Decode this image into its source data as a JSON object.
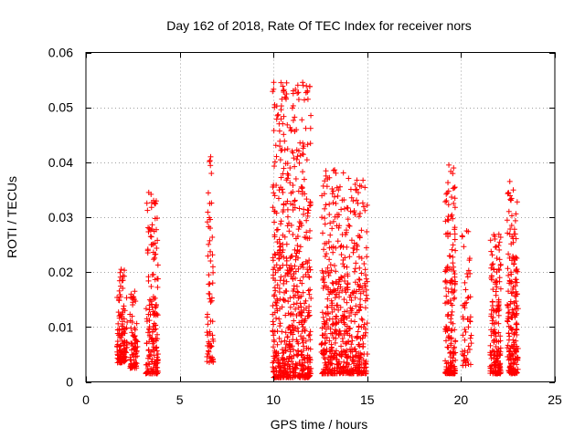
{
  "chart_data": {
    "type": "scatter",
    "title": "Day 162 of 2018, Rate Of TEC Index for receiver nors",
    "xlabel": "GPS time / hours",
    "ylabel": "ROTI / TECUs",
    "xlim": [
      0,
      25
    ],
    "ylim": [
      0,
      0.06
    ],
    "x_ticks": [
      0,
      5,
      10,
      15,
      20,
      25
    ],
    "x_tick_labels": [
      "0",
      "5",
      "10",
      "15",
      "20",
      "25"
    ],
    "y_ticks": [
      0,
      0.01,
      0.02,
      0.03,
      0.04,
      0.05,
      0.06
    ],
    "y_tick_labels": [
      "0",
      "0.01",
      "0.02",
      "0.03",
      "0.04",
      "0.05",
      "0.06"
    ],
    "grid": true,
    "marker": "+",
    "marker_color": "#ff0000",
    "series": [
      {
        "name": "ROTI",
        "x": [
          1.75,
          1.78,
          1.82,
          1.85,
          1.88,
          1.92,
          1.95,
          1.98,
          2.0,
          2.05,
          2.08,
          2.1,
          2.45,
          2.5,
          2.55,
          2.6,
          2.65,
          2.7,
          3.25,
          3.3,
          3.35,
          3.4,
          3.45,
          3.5,
          3.55,
          3.6,
          3.65,
          3.7,
          3.75,
          3.8,
          6.5,
          6.55,
          6.6,
          6.65,
          6.7,
          6.75,
          10.0,
          10.1,
          10.2,
          10.3,
          10.4,
          10.45,
          10.5,
          10.55,
          10.6,
          10.7,
          10.8,
          10.9,
          11.0,
          11.1,
          11.2,
          11.3,
          11.4,
          11.5,
          11.6,
          11.7,
          11.8,
          11.9,
          12.6,
          12.7,
          12.8,
          12.9,
          13.0,
          13.1,
          13.2,
          13.3,
          13.4,
          13.5,
          13.6,
          13.7,
          13.8,
          13.9,
          14.0,
          14.1,
          14.2,
          14.3,
          14.4,
          14.5,
          14.6,
          14.7,
          14.8,
          14.9,
          19.2,
          19.25,
          19.3,
          19.35,
          19.4,
          19.45,
          19.5,
          19.55,
          19.6,
          19.65,
          20.1,
          20.2,
          20.3,
          20.4,
          20.5,
          21.6,
          21.7,
          21.8,
          21.9,
          22.0,
          22.1,
          22.5,
          22.6,
          22.7,
          22.8,
          22.9,
          23.0
        ],
        "y": [
          0.0085,
          0.012,
          0.0065,
          0.0155,
          0.0205,
          0.0095,
          0.011,
          0.0185,
          0.0045,
          0.0075,
          0.013,
          0.0055,
          0.009,
          0.0145,
          0.006,
          0.0165,
          0.0035,
          0.0075,
          0.0115,
          0.0235,
          0.0345,
          0.0085,
          0.0265,
          0.0055,
          0.0195,
          0.0155,
          0.0095,
          0.0125,
          0.0075,
          0.0045,
          0.0105,
          0.0195,
          0.0325,
          0.041,
          0.0065,
          0.0085,
          0.0085,
          0.0145,
          0.0255,
          0.047,
          0.0545,
          0.0515,
          0.0345,
          0.0185,
          0.0075,
          0.0225,
          0.0125,
          0.0055,
          0.0095,
          0.0175,
          0.0025,
          0.0265,
          0.0155,
          0.0285,
          0.0065,
          0.0115,
          0.0205,
          0.0045,
          0.0085,
          0.0175,
          0.0375,
          0.0125,
          0.0055,
          0.0245,
          0.0385,
          0.0095,
          0.0305,
          0.0155,
          0.0065,
          0.0215,
          0.0105,
          0.0045,
          0.0285,
          0.0135,
          0.0075,
          0.0165,
          0.0055,
          0.0325,
          0.0265,
          0.0115,
          0.0085,
          0.0175,
          0.0075,
          0.0145,
          0.0265,
          0.0395,
          0.0205,
          0.0115,
          0.0185,
          0.0055,
          0.0325,
          0.0095,
          0.0085,
          0.0135,
          0.0275,
          0.0065,
          0.0155,
          0.0095,
          0.0215,
          0.0265,
          0.0055,
          0.0135,
          0.0075,
          0.0115,
          0.0365,
          0.0285,
          0.0065,
          0.0175,
          0.0045
        ]
      }
    ],
    "clusters": [
      {
        "x_start": 1.65,
        "x_end": 2.2,
        "y_min": 0.0035,
        "y_max": 0.0205,
        "count": 110
      },
      {
        "x_start": 2.35,
        "x_end": 2.75,
        "y_min": 0.0025,
        "y_max": 0.0165,
        "count": 70
      },
      {
        "x_start": 3.2,
        "x_end": 3.85,
        "y_min": 0.0015,
        "y_max": 0.0345,
        "count": 160
      },
      {
        "x_start": 6.45,
        "x_end": 6.8,
        "y_min": 0.0035,
        "y_max": 0.041,
        "count": 60
      },
      {
        "x_start": 9.95,
        "x_end": 12.0,
        "y_min": 0.0008,
        "y_max": 0.0548,
        "count": 620
      },
      {
        "x_start": 12.55,
        "x_end": 15.0,
        "y_min": 0.0015,
        "y_max": 0.0388,
        "count": 560
      },
      {
        "x_start": 19.15,
        "x_end": 19.7,
        "y_min": 0.0015,
        "y_max": 0.0398,
        "count": 170
      },
      {
        "x_start": 20.05,
        "x_end": 20.55,
        "y_min": 0.003,
        "y_max": 0.0275,
        "count": 50
      },
      {
        "x_start": 21.55,
        "x_end": 22.15,
        "y_min": 0.0015,
        "y_max": 0.027,
        "count": 160
      },
      {
        "x_start": 22.45,
        "x_end": 23.05,
        "y_min": 0.0015,
        "y_max": 0.037,
        "count": 190
      }
    ]
  }
}
